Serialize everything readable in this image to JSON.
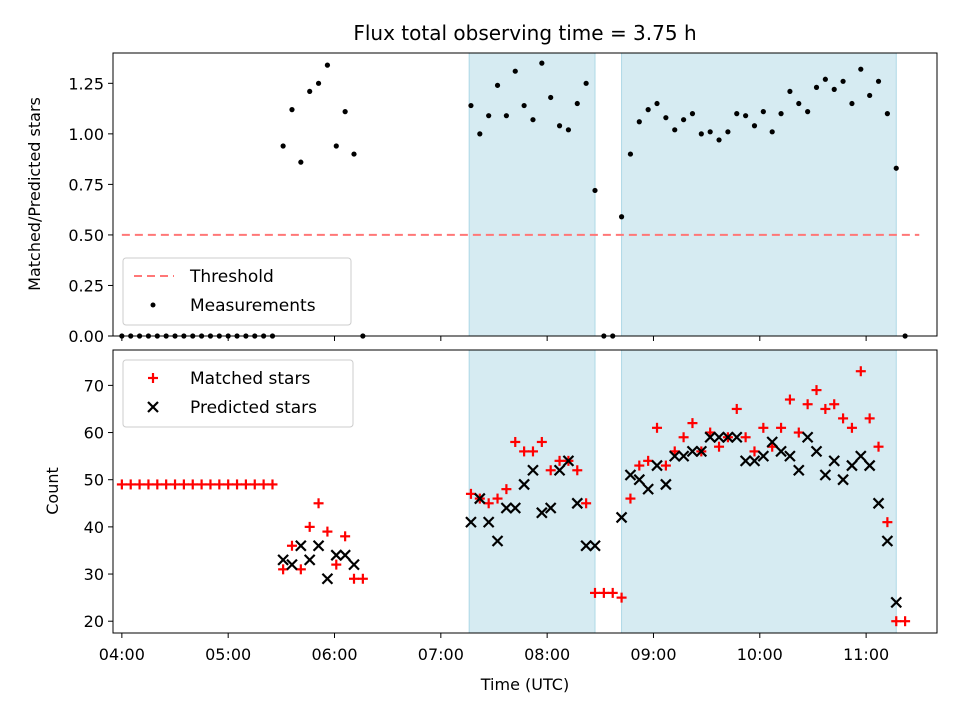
{
  "chart_data": [
    {
      "type": "scatter",
      "title": "Flux total observing time = 3.75 h",
      "ylabel": "Matched/Predicted stars",
      "xlabel": "",
      "x_unit": "time of day (UTC)",
      "xlim": [
        "03:55",
        "11:40"
      ],
      "ylim": [
        0,
        1.4
      ],
      "yticks": [
        "0.00",
        "0.25",
        "0.50",
        "0.75",
        "1.00",
        "1.25"
      ],
      "xticks": [
        "04:00",
        "05:00",
        "06:00",
        "07:00",
        "08:00",
        "09:00",
        "10:00",
        "11:00"
      ],
      "show_xticklabels": false,
      "shaded_spans": [
        [
          "07:16",
          "08:27"
        ],
        [
          "08:42",
          "11:17"
        ]
      ],
      "shade_color": "#add8e6",
      "legend": {
        "placement": "lower-left",
        "entries": [
          {
            "label": "Threshold",
            "color": "#ff7777",
            "marker": "dashed-line"
          },
          {
            "label": "Measurements",
            "color": "#000000",
            "marker": "dot"
          }
        ]
      },
      "threshold": {
        "name": "Threshold",
        "value": 0.5,
        "x_start": "04:00",
        "x_end": "11:30",
        "color": "#ff7777"
      },
      "series": [
        {
          "name": "Measurements",
          "color": "#000000",
          "points": [
            [
              "04:00",
              0
            ],
            [
              "04:05",
              0
            ],
            [
              "04:10",
              0
            ],
            [
              "04:15",
              0
            ],
            [
              "04:20",
              0
            ],
            [
              "04:25",
              0
            ],
            [
              "04:30",
              0
            ],
            [
              "04:35",
              0
            ],
            [
              "04:40",
              0
            ],
            [
              "04:45",
              0
            ],
            [
              "04:50",
              0
            ],
            [
              "04:55",
              0
            ],
            [
              "05:00",
              0
            ],
            [
              "05:05",
              0
            ],
            [
              "05:10",
              0
            ],
            [
              "05:15",
              0
            ],
            [
              "05:20",
              0
            ],
            [
              "05:25",
              0
            ],
            [
              "05:31",
              0.94
            ],
            [
              "05:36",
              1.12
            ],
            [
              "05:41",
              0.86
            ],
            [
              "05:46",
              1.21
            ],
            [
              "05:51",
              1.25
            ],
            [
              "05:56",
              1.34
            ],
            [
              "06:01",
              0.94
            ],
            [
              "06:06",
              1.11
            ],
            [
              "06:11",
              0.9
            ],
            [
              "06:16",
              0
            ],
            [
              "07:17",
              1.14
            ],
            [
              "07:22",
              1.0
            ],
            [
              "07:27",
              1.09
            ],
            [
              "07:32",
              1.24
            ],
            [
              "07:37",
              1.09
            ],
            [
              "07:42",
              1.31
            ],
            [
              "07:47",
              1.14
            ],
            [
              "07:52",
              1.07
            ],
            [
              "07:57",
              1.35
            ],
            [
              "08:02",
              1.18
            ],
            [
              "08:07",
              1.04
            ],
            [
              "08:12",
              1.02
            ],
            [
              "08:17",
              1.15
            ],
            [
              "08:22",
              1.25
            ],
            [
              "08:27",
              0.72
            ],
            [
              "08:32",
              0
            ],
            [
              "08:37",
              0
            ],
            [
              "08:42",
              0.59
            ],
            [
              "08:47",
              0.9
            ],
            [
              "08:52",
              1.06
            ],
            [
              "08:57",
              1.12
            ],
            [
              "09:02",
              1.15
            ],
            [
              "09:07",
              1.08
            ],
            [
              "09:12",
              1.02
            ],
            [
              "09:17",
              1.07
            ],
            [
              "09:22",
              1.1
            ],
            [
              "09:27",
              1.0
            ],
            [
              "09:32",
              1.01
            ],
            [
              "09:37",
              0.97
            ],
            [
              "09:42",
              1.01
            ],
            [
              "09:47",
              1.1
            ],
            [
              "09:52",
              1.09
            ],
            [
              "09:57",
              1.04
            ],
            [
              "10:02",
              1.11
            ],
            [
              "10:07",
              1.01
            ],
            [
              "10:12",
              1.1
            ],
            [
              "10:17",
              1.21
            ],
            [
              "10:22",
              1.15
            ],
            [
              "10:27",
              1.11
            ],
            [
              "10:32",
              1.23
            ],
            [
              "10:37",
              1.27
            ],
            [
              "10:42",
              1.22
            ],
            [
              "10:47",
              1.26
            ],
            [
              "10:52",
              1.15
            ],
            [
              "10:57",
              1.32
            ],
            [
              "11:02",
              1.19
            ],
            [
              "11:07",
              1.26
            ],
            [
              "11:12",
              1.1
            ],
            [
              "11:17",
              0.83
            ],
            [
              "11:22",
              0
            ]
          ]
        }
      ]
    },
    {
      "type": "scatter",
      "title": "",
      "xlabel": "Time (UTC)",
      "ylabel": "Count",
      "xlim": [
        "03:55",
        "11:40"
      ],
      "ylim": [
        17.5,
        77.5
      ],
      "yticks": [
        "20",
        "30",
        "40",
        "50",
        "60",
        "70"
      ],
      "xticks": [
        "04:00",
        "05:00",
        "06:00",
        "07:00",
        "08:00",
        "09:00",
        "10:00",
        "11:00"
      ],
      "shaded_spans": [
        [
          "07:16",
          "08:27"
        ],
        [
          "08:42",
          "11:17"
        ]
      ],
      "shade_color": "#add8e6",
      "legend": {
        "placement": "upper-left",
        "entries": [
          {
            "label": "Matched stars",
            "color": "#ff0000",
            "marker": "+"
          },
          {
            "label": "Predicted stars",
            "color": "#000000",
            "marker": "x"
          }
        ]
      },
      "series": [
        {
          "name": "Matched stars",
          "color": "#ff0000",
          "marker": "+",
          "points": [
            [
              "04:00",
              49
            ],
            [
              "04:05",
              49
            ],
            [
              "04:10",
              49
            ],
            [
              "04:15",
              49
            ],
            [
              "04:20",
              49
            ],
            [
              "04:25",
              49
            ],
            [
              "04:30",
              49
            ],
            [
              "04:35",
              49
            ],
            [
              "04:40",
              49
            ],
            [
              "04:45",
              49
            ],
            [
              "04:50",
              49
            ],
            [
              "04:55",
              49
            ],
            [
              "05:00",
              49
            ],
            [
              "05:05",
              49
            ],
            [
              "05:10",
              49
            ],
            [
              "05:15",
              49
            ],
            [
              "05:20",
              49
            ],
            [
              "05:25",
              49
            ],
            [
              "05:31",
              31
            ],
            [
              "05:36",
              36
            ],
            [
              "05:41",
              31
            ],
            [
              "05:46",
              40
            ],
            [
              "05:51",
              45
            ],
            [
              "05:56",
              39
            ],
            [
              "06:01",
              32
            ],
            [
              "06:06",
              38
            ],
            [
              "06:11",
              29
            ],
            [
              "06:16",
              29
            ],
            [
              "07:17",
              47
            ],
            [
              "07:22",
              46
            ],
            [
              "07:27",
              45
            ],
            [
              "07:32",
              46
            ],
            [
              "07:37",
              48
            ],
            [
              "07:42",
              58
            ],
            [
              "07:47",
              56
            ],
            [
              "07:52",
              56
            ],
            [
              "07:57",
              58
            ],
            [
              "08:02",
              52
            ],
            [
              "08:07",
              54
            ],
            [
              "08:12",
              54
            ],
            [
              "08:17",
              52
            ],
            [
              "08:22",
              45
            ],
            [
              "08:27",
              26
            ],
            [
              "08:32",
              26
            ],
            [
              "08:37",
              26
            ],
            [
              "08:42",
              25
            ],
            [
              "08:47",
              46
            ],
            [
              "08:52",
              53
            ],
            [
              "08:57",
              54
            ],
            [
              "09:02",
              61
            ],
            [
              "09:07",
              53
            ],
            [
              "09:12",
              56
            ],
            [
              "09:17",
              59
            ],
            [
              "09:22",
              62
            ],
            [
              "09:27",
              56
            ],
            [
              "09:32",
              60
            ],
            [
              "09:37",
              57
            ],
            [
              "09:42",
              59
            ],
            [
              "09:47",
              65
            ],
            [
              "09:52",
              59
            ],
            [
              "09:57",
              56
            ],
            [
              "10:02",
              61
            ],
            [
              "10:07",
              57
            ],
            [
              "10:12",
              61
            ],
            [
              "10:17",
              67
            ],
            [
              "10:22",
              60
            ],
            [
              "10:27",
              66
            ],
            [
              "10:32",
              69
            ],
            [
              "10:37",
              65
            ],
            [
              "10:42",
              66
            ],
            [
              "10:47",
              63
            ],
            [
              "10:52",
              61
            ],
            [
              "10:57",
              73
            ],
            [
              "11:02",
              63
            ],
            [
              "11:07",
              57
            ],
            [
              "11:12",
              41
            ],
            [
              "11:17",
              20
            ],
            [
              "11:22",
              20
            ]
          ]
        },
        {
          "name": "Predicted stars",
          "color": "#000000",
          "marker": "x",
          "points": [
            [
              "05:31",
              33
            ],
            [
              "05:36",
              32
            ],
            [
              "05:41",
              36
            ],
            [
              "05:46",
              33
            ],
            [
              "05:51",
              36
            ],
            [
              "05:56",
              29
            ],
            [
              "06:01",
              34
            ],
            [
              "06:06",
              34
            ],
            [
              "06:11",
              32
            ],
            [
              "07:17",
              41
            ],
            [
              "07:22",
              46
            ],
            [
              "07:27",
              41
            ],
            [
              "07:32",
              37
            ],
            [
              "07:37",
              44
            ],
            [
              "07:42",
              44
            ],
            [
              "07:47",
              49
            ],
            [
              "07:52",
              52
            ],
            [
              "07:57",
              43
            ],
            [
              "08:02",
              44
            ],
            [
              "08:07",
              52
            ],
            [
              "08:12",
              54
            ],
            [
              "08:17",
              45
            ],
            [
              "08:22",
              36
            ],
            [
              "08:27",
              36
            ],
            [
              "08:42",
              42
            ],
            [
              "08:47",
              51
            ],
            [
              "08:52",
              50
            ],
            [
              "08:57",
              48
            ],
            [
              "09:02",
              53
            ],
            [
              "09:07",
              49
            ],
            [
              "09:12",
              55
            ],
            [
              "09:17",
              55
            ],
            [
              "09:22",
              56
            ],
            [
              "09:27",
              56
            ],
            [
              "09:32",
              59
            ],
            [
              "09:37",
              59
            ],
            [
              "09:42",
              59
            ],
            [
              "09:47",
              59
            ],
            [
              "09:52",
              54
            ],
            [
              "09:57",
              54
            ],
            [
              "10:02",
              55
            ],
            [
              "10:07",
              58
            ],
            [
              "10:12",
              56
            ],
            [
              "10:17",
              55
            ],
            [
              "10:22",
              52
            ],
            [
              "10:27",
              59
            ],
            [
              "10:32",
              56
            ],
            [
              "10:37",
              51
            ],
            [
              "10:42",
              54
            ],
            [
              "10:47",
              50
            ],
            [
              "10:52",
              53
            ],
            [
              "10:57",
              55
            ],
            [
              "11:02",
              53
            ],
            [
              "11:07",
              45
            ],
            [
              "11:12",
              37
            ],
            [
              "11:17",
              24
            ]
          ]
        }
      ]
    }
  ]
}
